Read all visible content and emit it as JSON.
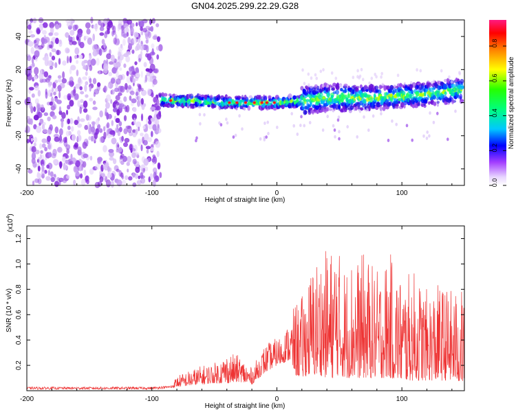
{
  "title": "GN04.2025.299.22.29.G28",
  "chart_data": [
    {
      "type": "heatmap",
      "title": "GN04.2025.299.22.29.G28",
      "xlabel": "Height of straight line (km)",
      "ylabel": "Frequency (Hz)",
      "xlim": [
        -200,
        150
      ],
      "ylim": [
        -50,
        50
      ],
      "x_ticks": [
        "-200",
        "-100",
        "0",
        "100"
      ],
      "y_ticks": [
        "-40",
        "-20",
        "0",
        "20",
        "40"
      ],
      "noise_region_x": [
        -200,
        -93
      ],
      "signal_band": {
        "x": [
          -100,
          -80,
          -60,
          -40,
          -20,
          0,
          20,
          40,
          60,
          80,
          100,
          120,
          150
        ],
        "center_hz": [
          2,
          1,
          1,
          0,
          0,
          0,
          1,
          3,
          3,
          3,
          4,
          5,
          8
        ]
      },
      "colorbar": {
        "label": "Normalized spectral amplitude",
        "range": [
          0,
          0.95
        ],
        "ticks": [
          "0.0",
          "0.2",
          "0.4",
          "0.6",
          "0.8"
        ]
      }
    },
    {
      "type": "line",
      "xlabel": "Height of straight line (km)",
      "ylabel": "SNR (10 * v/v)",
      "scale_label": "(x10",
      "scale_exp": "4",
      "xlim": [
        -200,
        150
      ],
      "ylim": [
        0,
        1.3
      ],
      "x_ticks": [
        "-200",
        "-100",
        "0",
        "100"
      ],
      "y_ticks": [
        "0.2",
        "0.4",
        "0.6",
        "0.8",
        "1.0",
        "1.2"
      ],
      "series": [
        {
          "name": "SNR",
          "color": "#ee3333",
          "x": [
            -200,
            -150,
            -100,
            -85,
            -80,
            -70,
            -60,
            -50,
            -40,
            -30,
            -20,
            -10,
            0,
            5,
            10,
            15,
            20,
            25,
            30,
            35,
            40,
            45,
            48,
            50,
            55,
            60,
            65,
            70,
            80,
            90,
            100,
            110,
            120,
            130,
            140,
            150
          ],
          "envelope_low": [
            0.01,
            0.01,
            0.01,
            0.02,
            0.03,
            0.04,
            0.05,
            0.06,
            0.06,
            0.07,
            0.05,
            0.14,
            0.2,
            0.22,
            0.24,
            0.12,
            0.1,
            0.12,
            0.12,
            0.12,
            0.1,
            0.1,
            0.12,
            0.12,
            0.1,
            0.1,
            0.1,
            0.1,
            0.1,
            0.1,
            0.08,
            0.08,
            0.08,
            0.08,
            0.08,
            0.06
          ],
          "envelope_high": [
            0.03,
            0.03,
            0.03,
            0.04,
            0.12,
            0.16,
            0.2,
            0.22,
            0.3,
            0.28,
            0.18,
            0.36,
            0.42,
            0.45,
            0.55,
            0.7,
            0.75,
            0.9,
            1.05,
            1.1,
            1.12,
            1.15,
            1.3,
            1.1,
            1.0,
            1.08,
            1.05,
            1.1,
            0.95,
            1.1,
            0.9,
            0.95,
            0.8,
            0.85,
            0.8,
            0.8
          ]
        }
      ]
    }
  ]
}
